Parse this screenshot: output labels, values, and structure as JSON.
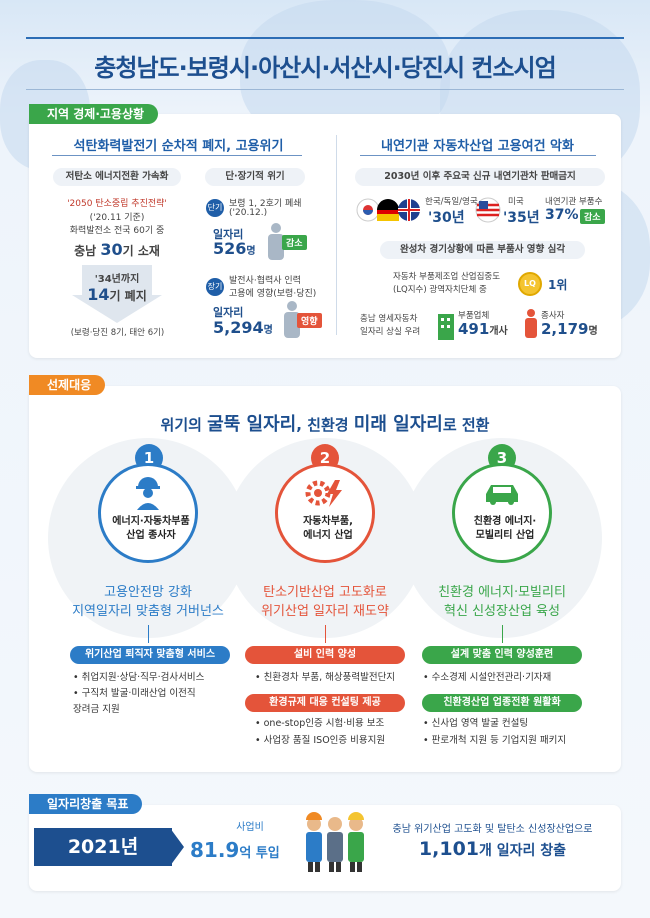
{
  "title": "충청남도·보령시·아산시·서산시·당진시 컨소시엄",
  "section1": {
    "tag": "지역 경제·고용상황",
    "left": {
      "heading": "석탄화력발전기 순차적 폐지, 고용위기",
      "col1": {
        "pill": "저탄소 에너지전환 가속화",
        "line1": "'2050 탄소중립 추진전략'",
        "line2": "('20.11 기준)",
        "line3": "화력발전소 전국 60기 중",
        "count_prefix": "충남",
        "count_num": "30",
        "count_suffix": "기 소재",
        "arrow_label": "'34년까지",
        "closed_num": "14",
        "closed_suffix": "기 폐지",
        "note": "(보령·당진 8기, 태안 6기)"
      },
      "col2": {
        "pill": "단·장기적 위기",
        "short_label": "단기",
        "short_text1": "보령 1, 2호기 폐쇄",
        "short_text2": "('20.12.)",
        "jobs_label": "일자리",
        "short_jobs_num": "526",
        "short_jobs_unit": "명",
        "short_badge": "감소",
        "long_label": "장기",
        "long_text1": "발전사·협력사 인력",
        "long_text2": "고용에 영향(보령·당진)",
        "long_jobs_num": "5,294",
        "long_jobs_unit": "명",
        "long_badge": "영향"
      }
    },
    "right": {
      "heading": "내연기관 자동차산업 고용여건 악화",
      "pill1": "2030년 이후 주요국 신규 내연기관차 판매금지",
      "country1": "한국/독일/영국",
      "year1": "'30년",
      "country2": "미국",
      "year2": "'35년",
      "parts_label": "내연기관 부품수",
      "parts_pct": "37%",
      "parts_badge": "감소",
      "pill2": "완성차 경기상황에 따른 부품사 영향 심각",
      "lq_line1": "자동차 부품제조업 산업집중도",
      "lq_line2": "(LQ지수) 광역자치단체 중",
      "lq_icon": "LQ",
      "lq_rank": "1위",
      "risk_line1": "충남 영세자동차",
      "risk_line2": "일자리 상실 우려",
      "firms_label": "부품업체",
      "firms_num": "491",
      "firms_unit": "개사",
      "workers_label": "종사자",
      "workers_num": "2,179",
      "workers_unit": "명"
    }
  },
  "section2": {
    "tag": "선제대응",
    "headline_pre": "위기의 ",
    "headline_b1": "굴뚝 일자리",
    "headline_mid": ", 친환경 ",
    "headline_b2": "미래 일자리",
    "headline_post": "로 전환",
    "columns": [
      {
        "num": "1",
        "color": "#2c7cc7",
        "icon": "worker-icon",
        "label1": "에너지·자동차부품",
        "label2": "산업 종사자",
        "goal1": "고용안전망 강화",
        "goal2": "지역일자리 맞춤형 거버넌스",
        "bars": [
          {
            "head": "위기산업 퇴직자 맞춤형 서비스",
            "items": [
              "• 취업지원·상담·직무·검사서비스",
              "• 구직처 발굴·미래산업 이전직",
              "  장려금 지원"
            ]
          }
        ]
      },
      {
        "num": "2",
        "color": "#e4543a",
        "icon": "gear-lightning-icon",
        "label1": "자동차부품,",
        "label2": "에너지 산업",
        "goal1": "탄소기반산업 고도화로",
        "goal2": "위기산업 일자리 재도약",
        "bars": [
          {
            "head": "설비 인력 양성",
            "items": [
              "• 친환경차 부품, 해상풍력발전단지"
            ]
          },
          {
            "head": "환경규제 대응 컨설팅 제공",
            "items": [
              "• one-stop인증 시험·비용 보조",
              "• 사업장 품질 ISO인증 비용지원"
            ]
          }
        ]
      },
      {
        "num": "3",
        "color": "#3aa64a",
        "icon": "car-icon",
        "label1": "친환경 에너지·",
        "label2": "모빌리티 산업",
        "goal1": "친환경 에너지·모빌리티",
        "goal2": "혁신 신성장산업 육성",
        "bars": [
          {
            "head": "설계 맞춤 인력 양성훈련",
            "items": [
              "• 수소경제 시설안전관리·기자재"
            ]
          },
          {
            "head": "친환경산업 업종전환 원활화",
            "items": [
              "• 신사업 영역 발굴 컨설팅",
              "• 판로개척 지원 등 기업지원 패키지"
            ]
          }
        ]
      }
    ]
  },
  "section3": {
    "tag": "일자리창출 목표",
    "year": "2021년",
    "budget_label": "사업비",
    "budget_num": "81.9",
    "budget_unit": "억 투입",
    "goal_line1": "충남 위기산업 고도화 및 탈탄소 신성장산업으로",
    "goal_num": "1,101",
    "goal_unit": "개 일자리 창출"
  },
  "colors": {
    "navy": "#1d4f8f",
    "green": "#3aa64a",
    "orange": "#f08a24",
    "red": "#e4543a",
    "blue": "#2c7cc7"
  }
}
